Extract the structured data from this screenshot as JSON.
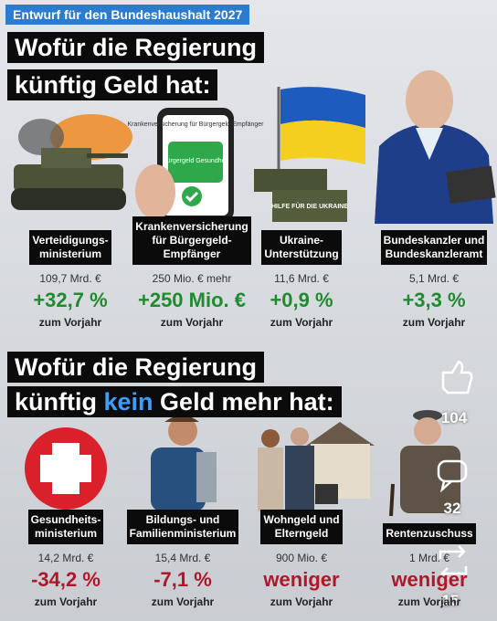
{
  "header": {
    "tag": "Entwurf für den Bundeshaushalt 2027"
  },
  "section1": {
    "title_lines": [
      "Wofür die Regierung",
      "künftig Geld hat:"
    ],
    "images": {
      "phone_text": "Krankenversicherung für Bürgergeld-Empfänger",
      "phone_card": "Bürgergeld Gesundheit",
      "crate_text": "HILFE FÜR DIE UKRAINE"
    },
    "items": [
      {
        "label_lines": [
          "Verteidigungs-",
          "ministerium"
        ],
        "amount": "109,7 Mrd. €",
        "change": "+32,7 %",
        "note": "zum Vorjahr"
      },
      {
        "label_lines": [
          "Krankenversicherung",
          "für Bürgergeld-",
          "Empfänger"
        ],
        "amount": "250 Mio. € mehr",
        "change": "+250 Mio. €",
        "note": "zum Vorjahr"
      },
      {
        "label_lines": [
          "Ukraine-",
          "Unterstützung"
        ],
        "amount": "11,6 Mrd. €",
        "change": "+0,9 %",
        "note": "zum Vorjahr"
      },
      {
        "label_lines": [
          "Bundeskanzler und",
          "Bundeskanzleramt"
        ],
        "amount": "5,1 Mrd. €",
        "change": "+3,3 %",
        "note": "zum Vorjahr"
      }
    ]
  },
  "section2": {
    "title_line1": "Wofür die Regierung",
    "title_line2": [
      "künftig",
      "kein",
      "Geld mehr hat:"
    ],
    "items": [
      {
        "label_lines": [
          "Gesundheits-",
          "ministerium"
        ],
        "amount": "14,2 Mrd. €",
        "change": "-34,2 %",
        "note": "zum Vorjahr"
      },
      {
        "label_lines": [
          "Bildungs- und",
          "Familienministerium"
        ],
        "amount": "15,4 Mrd. €",
        "change": "-7,1 %",
        "note": "zum Vorjahr"
      },
      {
        "label_lines": [
          "Wohngeld und",
          "Elterngeld"
        ],
        "amount": "900 Mio. €",
        "change": "weniger",
        "note": "zum Vorjahr"
      },
      {
        "label_lines": [
          "Rentenzuschuss"
        ],
        "amount": "1 Mrd. €",
        "change": "weniger",
        "note": "zum Vorjahr"
      }
    ]
  },
  "social": {
    "likes": "104",
    "comments": "32",
    "reposts": "15"
  }
}
